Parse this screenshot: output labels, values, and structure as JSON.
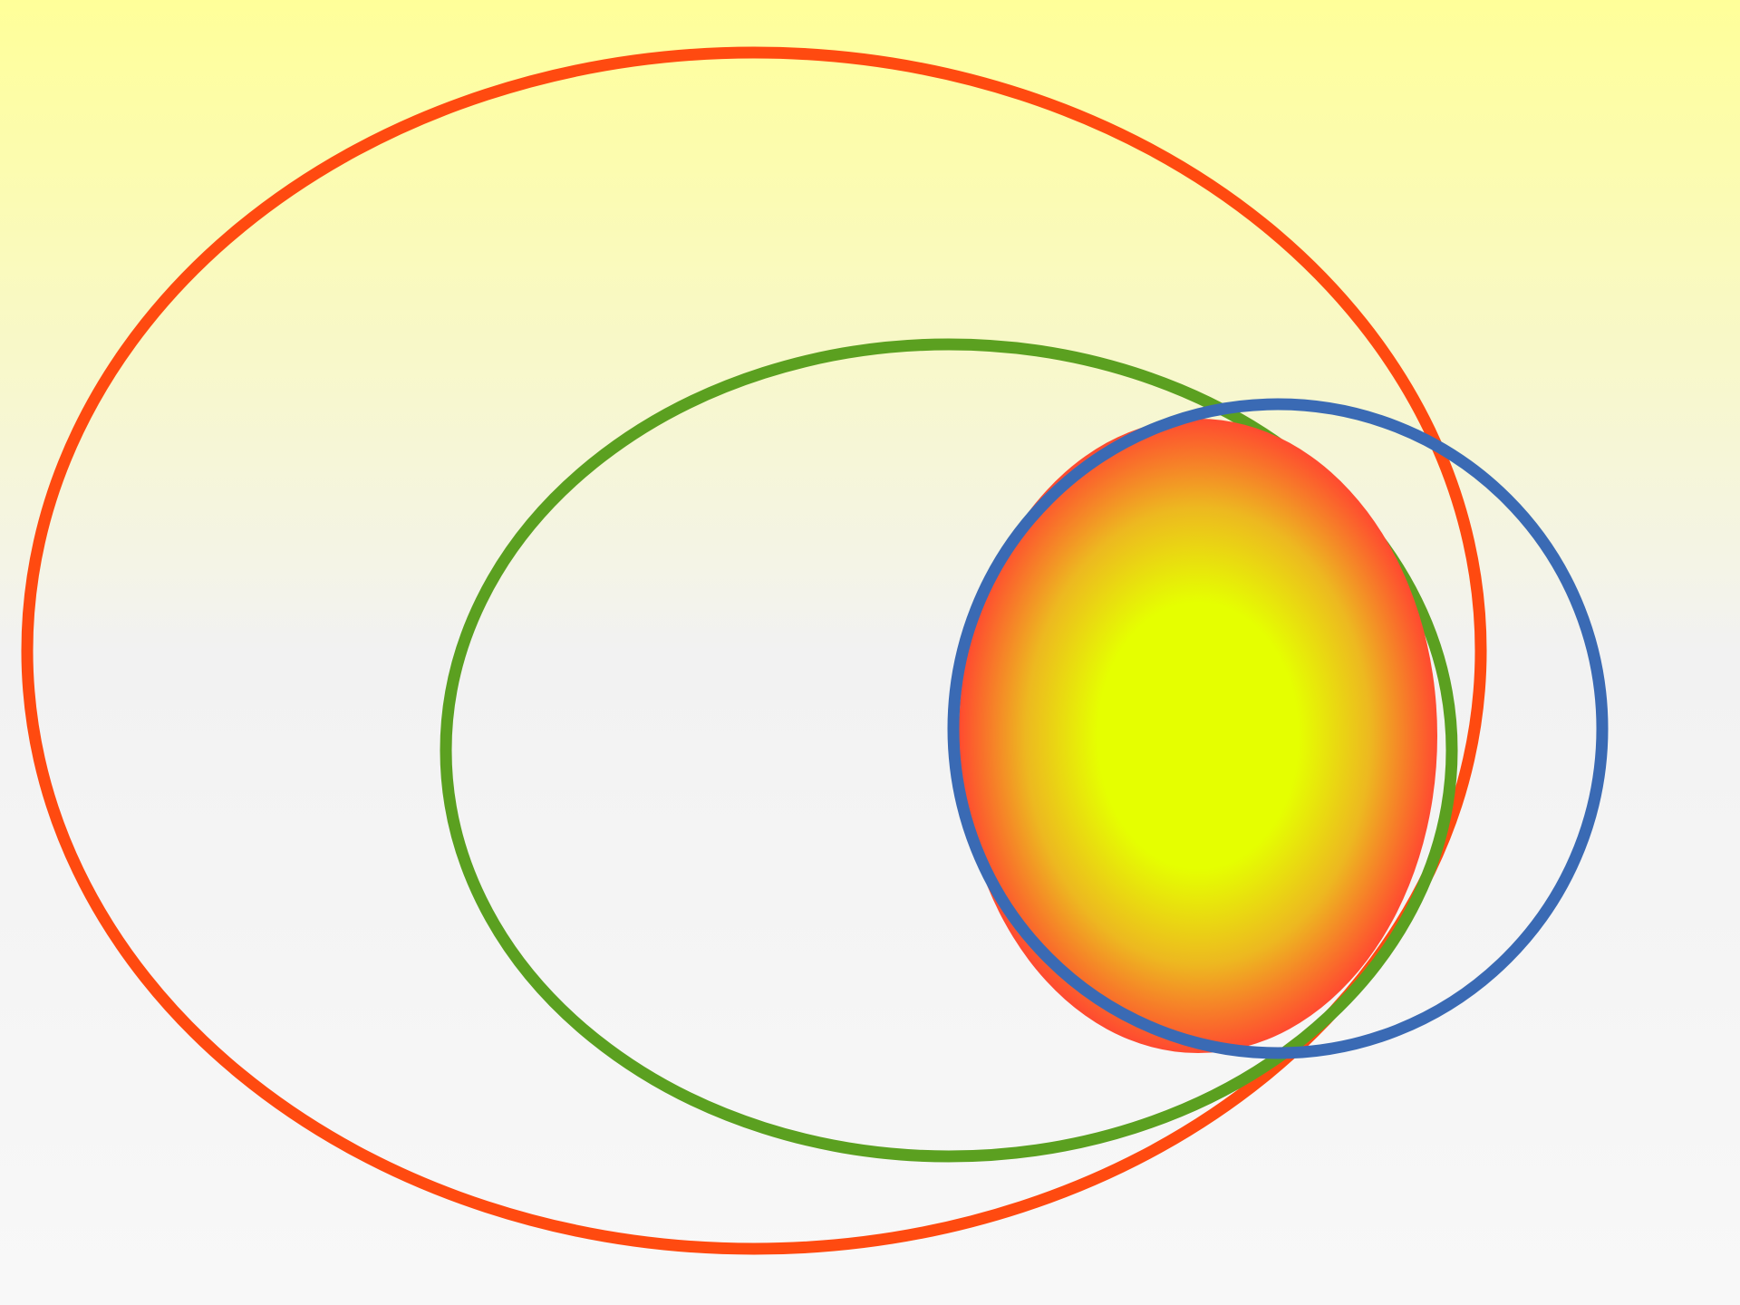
{
  "colors": {
    "background_top": "#FFFF99",
    "background_middle": "#F2F2F2",
    "background_bottom": "#F8F8F8",
    "outer_ellipse_stroke": "#FF4A10",
    "middle_ellipse_stroke": "#5BA020",
    "blue_circle_stroke": "#3A6AB4",
    "gradient_center": "#E5FF00",
    "gradient_mid": "#EDB820",
    "gradient_edge": "#FF4A30"
  },
  "shapes": [
    {
      "name": "outer-orange-ellipse",
      "kind": "outline",
      "color_key": "outer_ellipse_stroke"
    },
    {
      "name": "green-ellipse",
      "kind": "outline",
      "color_key": "middle_ellipse_stroke"
    },
    {
      "name": "gradient-filled-ellipse",
      "kind": "radial-gradient-fill"
    },
    {
      "name": "blue-circle",
      "kind": "outline",
      "color_key": "blue_circle_stroke"
    }
  ]
}
